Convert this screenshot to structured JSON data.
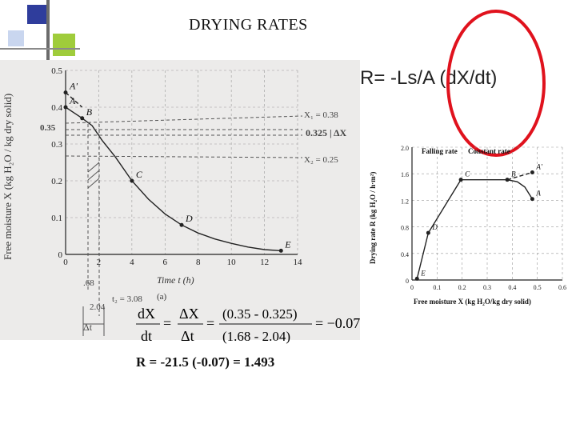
{
  "slide": {
    "title": "DRYING RATES",
    "formula": "R= -Ls/A (dX/dt)",
    "calc": {
      "lhs_num": "dX",
      "lhs_den": "dt",
      "mid_num": "ΔX",
      "mid_den": "Δt",
      "frac_num": "(0.35 - 0.325)",
      "frac_den": "(1.68 - 2.04)",
      "result_value": "= −0.07"
    },
    "result_line": "R = -21.5 (-0.07) = 1.493"
  },
  "left_chart": {
    "ylabel": "Free moisture X (kg H₂O / kg dry solid)",
    "xlabel": "Time t (h)",
    "caption": "(a)",
    "yticks": [
      "0",
      "0.1",
      "0.2",
      "0.3",
      "0.4",
      "0.5"
    ],
    "xticks": [
      "0",
      "2",
      "4",
      "6",
      "8",
      "10",
      "12",
      "14"
    ],
    "point_labels": [
      "A'",
      "A",
      "B",
      "C",
      "D",
      "E"
    ],
    "hand_annotations": {
      "x1": "X₁ = 0.38",
      "delta": "0.325 | ΔX",
      "x2": "X₂ = 0.25",
      "y035": "0.35",
      "t168": ".68",
      "t204": "2.04",
      "t2": "t₂ = 3.08",
      "dt": "Δt"
    }
  },
  "right_chart": {
    "ylabel": "Drying rate R (kg H₂O / h·m²)",
    "xlabel": "Free moisture X (kg H₂O/kg dry solid)",
    "yticks": [
      "0",
      "0.4",
      "0.8",
      "1.2",
      "1.6",
      "2.0"
    ],
    "xticks": [
      "0",
      "0.1",
      "0.2",
      "0.3",
      "0.4",
      "0.5",
      "0.6"
    ],
    "falling_label": "Falling rate",
    "constant_label": "Constant rate",
    "point_labels": [
      "A'",
      "A",
      "B",
      "C",
      "D",
      "E",
      "X_C"
    ]
  },
  "chart_data": [
    {
      "type": "line",
      "title": "",
      "xlabel": "Time t (h)",
      "ylabel": "Free moisture X (kg H2O/kg dry solid)",
      "xlim": [
        0,
        14
      ],
      "ylim": [
        0,
        0.5
      ],
      "grid": true,
      "series": [
        {
          "points": [
            {
              "x": 0.0,
              "y": 0.4
            },
            {
              "x": 0.5,
              "y": 0.385
            },
            {
              "x": 1.0,
              "y": 0.37
            },
            {
              "x": 1.6,
              "y": 0.35
            },
            {
              "x": 2.2,
              "y": 0.31
            },
            {
              "x": 3.0,
              "y": 0.265
            },
            {
              "x": 4.0,
              "y": 0.2
            },
            {
              "x": 5.0,
              "y": 0.15
            },
            {
              "x": 6.0,
              "y": 0.11
            },
            {
              "x": 7.0,
              "y": 0.08
            },
            {
              "x": 8.0,
              "y": 0.058
            },
            {
              "x": 9.0,
              "y": 0.042
            },
            {
              "x": 10.0,
              "y": 0.03
            },
            {
              "x": 11.0,
              "y": 0.02
            },
            {
              "x": 12.0,
              "y": 0.013
            },
            {
              "x": 13.0,
              "y": 0.01
            }
          ]
        },
        {
          "points": [
            {
              "x": 0.0,
              "y": 0.44
            },
            {
              "x": 1.0,
              "y": 0.4
            }
          ]
        }
      ],
      "labeled_points": [
        {
          "label": "A'",
          "x": 0.0,
          "y": 0.44
        },
        {
          "label": "A",
          "x": 0.0,
          "y": 0.4
        },
        {
          "label": "B",
          "x": 1.0,
          "y": 0.37
        },
        {
          "label": "C",
          "x": 4.0,
          "y": 0.2
        },
        {
          "label": "D",
          "x": 7.0,
          "y": 0.08
        },
        {
          "label": "E",
          "x": 13.0,
          "y": 0.01
        }
      ]
    },
    {
      "type": "line",
      "title": "",
      "xlabel": "Free moisture X (kg H2O/kg dry solid)",
      "ylabel": "Drying rate R (kg H2O/h·m2)",
      "xlim": [
        0,
        0.6
      ],
      "ylim": [
        0,
        2.0
      ],
      "grid": true,
      "series": [
        {
          "points": [
            {
              "x": 0.02,
              "y": 0.02
            },
            {
              "x": 0.065,
              "y": 0.71
            },
            {
              "x": 0.195,
              "y": 1.51
            },
            {
              "x": 0.38,
              "y": 1.51
            },
            {
              "x": 0.42,
              "y": 1.48
            },
            {
              "x": 0.45,
              "y": 1.4
            },
            {
              "x": 0.48,
              "y": 1.22
            }
          ]
        },
        {
          "points": [
            {
              "x": 0.38,
              "y": 1.51
            },
            {
              "x": 0.48,
              "y": 1.62
            }
          ]
        }
      ],
      "labeled_points": [
        {
          "label": "E",
          "x": 0.02,
          "y": 0.02
        },
        {
          "label": "D",
          "x": 0.065,
          "y": 0.71
        },
        {
          "label": "C",
          "x": 0.195,
          "y": 1.51
        },
        {
          "label": "B",
          "x": 0.38,
          "y": 1.51
        },
        {
          "label": "A'",
          "x": 0.48,
          "y": 1.62
        },
        {
          "label": "A",
          "x": 0.48,
          "y": 1.22
        }
      ]
    }
  ],
  "colors": {
    "deco_blue": "#2f3d9c",
    "deco_green": "#9fcc3b",
    "deco_light": "#c9d6ef",
    "ellipse": "#e0121d",
    "scan_bg": "#ecebea",
    "grid": "#9a9a9a"
  }
}
